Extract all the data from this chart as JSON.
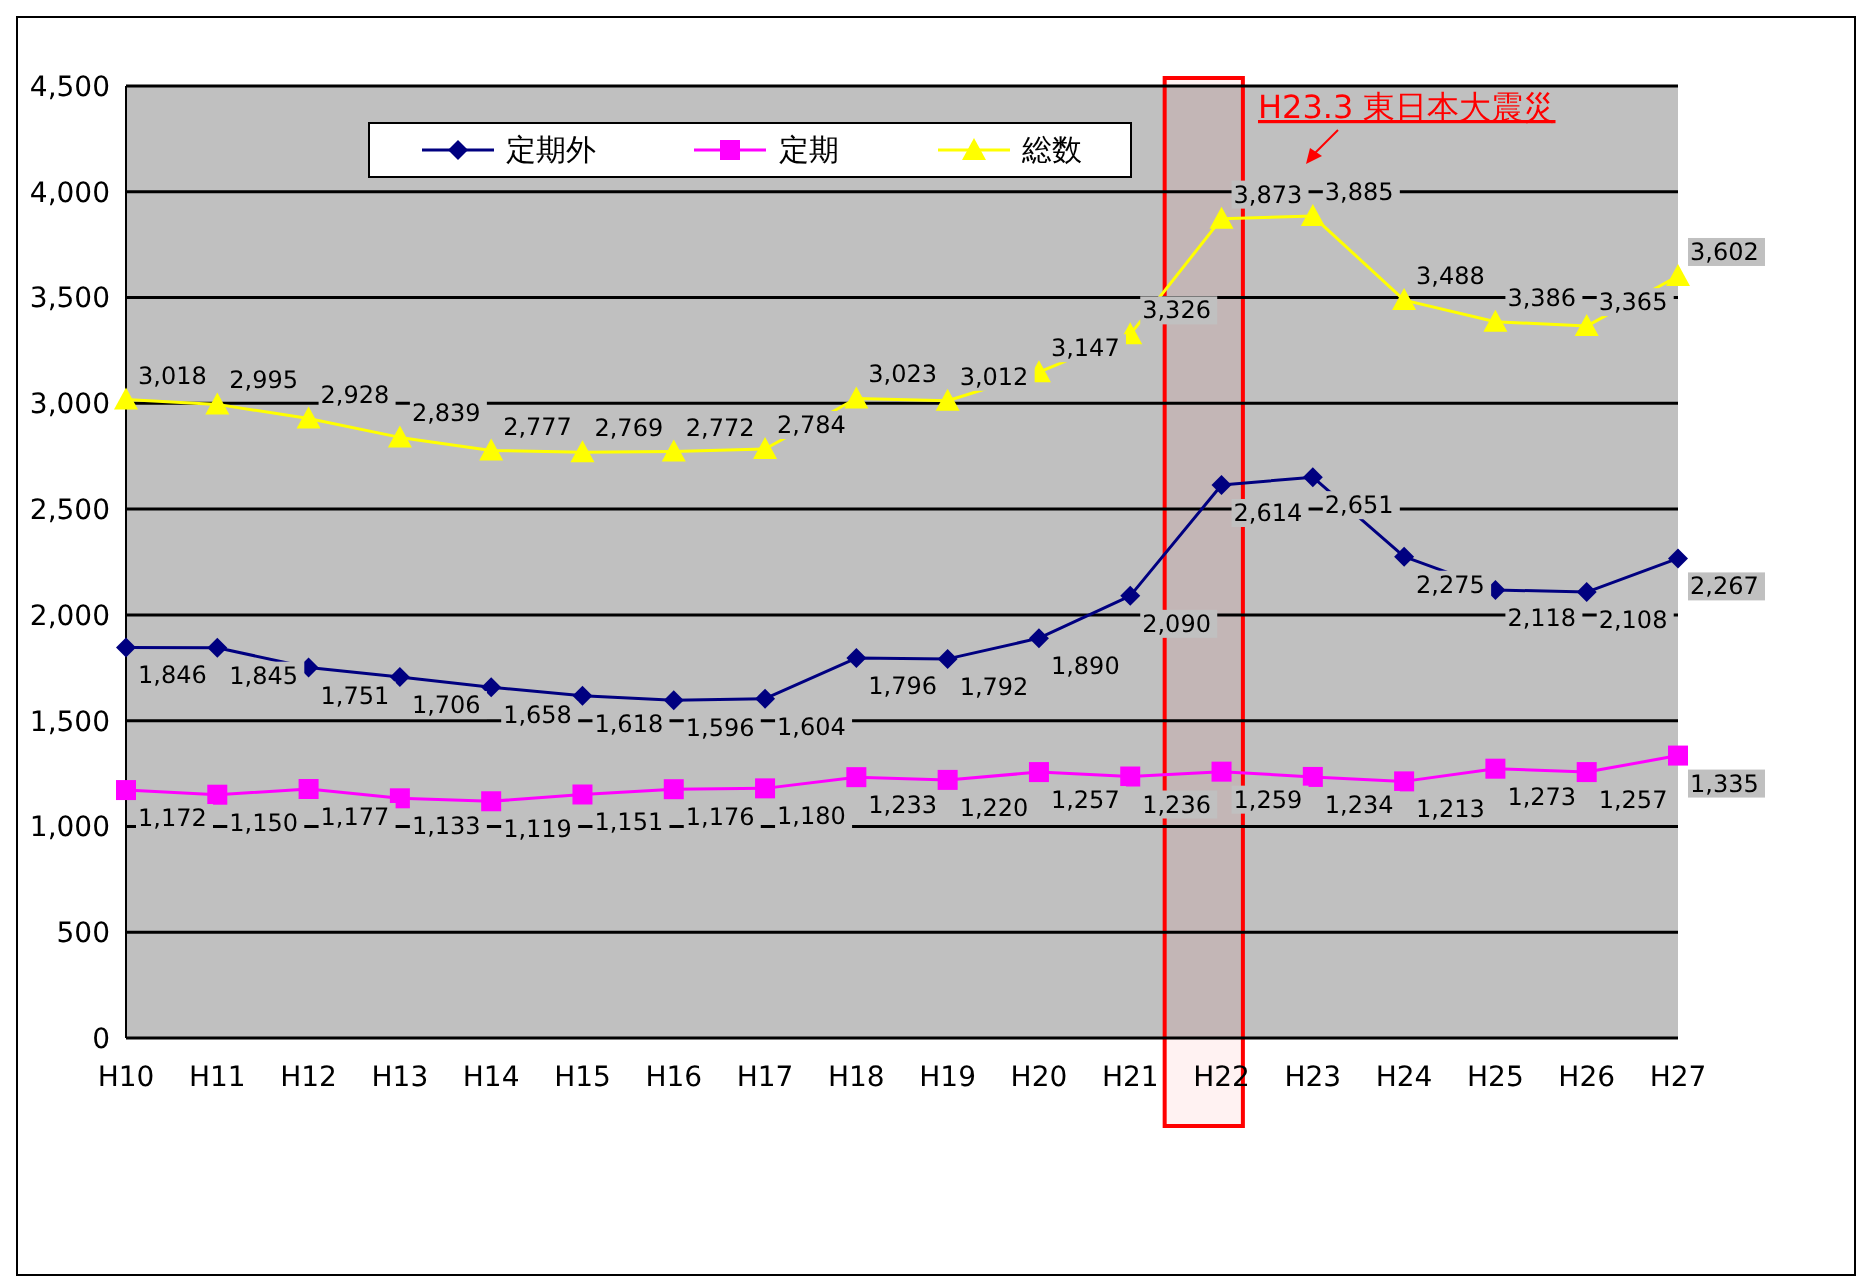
{
  "chart_data": {
    "type": "line",
    "categories": [
      "H10",
      "H11",
      "H12",
      "H13",
      "H14",
      "H15",
      "H16",
      "H17",
      "H18",
      "H19",
      "H20",
      "H21",
      "H22",
      "H23",
      "H24",
      "H25",
      "H26",
      "H27"
    ],
    "series": [
      {
        "name": "定期外",
        "color": "#000080",
        "marker": "diamond",
        "values": [
          1846,
          1845,
          1751,
          1706,
          1658,
          1618,
          1596,
          1604,
          1796,
          1792,
          1890,
          2090,
          2614,
          2651,
          2275,
          2118,
          2108,
          2267
        ],
        "value_labels": [
          "1,846",
          "1,845",
          "1,751",
          "1,706",
          "1,658",
          "1,618",
          "1,596",
          "1,604",
          "1,796",
          "1,792",
          "1,890",
          "2,090",
          "2,614",
          "2,651",
          "2,275",
          "2,118",
          "2,108",
          "2,267"
        ]
      },
      {
        "name": "定期",
        "color": "#ff00ff",
        "marker": "square",
        "values": [
          1172,
          1150,
          1177,
          1133,
          1119,
          1151,
          1176,
          1180,
          1233,
          1220,
          1257,
          1236,
          1259,
          1234,
          1213,
          1273,
          1257,
          1335
        ],
        "value_labels": [
          "1,172",
          "1,150",
          "1,177",
          "1,133",
          "1,119",
          "1,151",
          "1,176",
          "1,180",
          "1,233",
          "1,220",
          "1,257",
          "1,236",
          "1,259",
          "1,234",
          "1,213",
          "1,273",
          "1,257",
          "1,335"
        ]
      },
      {
        "name": "総数",
        "color": "#ffff00",
        "marker": "triangle",
        "values": [
          3018,
          2995,
          2928,
          2839,
          2777,
          2769,
          2772,
          2784,
          3023,
          3012,
          3147,
          3326,
          3873,
          3885,
          3488,
          3386,
          3365,
          3602
        ],
        "value_labels": [
          "3,018",
          "2,995",
          "2,928",
          "2,839",
          "2,777",
          "2,769",
          "2,772",
          "2,784",
          "3,023",
          "3,012",
          "3,147",
          "3,326",
          "3,873",
          "3,885",
          "3,488",
          "3,386",
          "3,365",
          "3,602"
        ]
      }
    ],
    "ylim": [
      0,
      4500
    ],
    "yticks": [
      0,
      500,
      {
        "value": 1000,
        "label": "1,000"
      },
      {
        "value": 1500,
        "label": "1,500"
      },
      {
        "value": 2000,
        "label": "2,000"
      },
      {
        "value": 2500,
        "label": "2,500"
      },
      {
        "value": 3000,
        "label": "3,000"
      },
      {
        "value": 3500,
        "label": "3,500"
      },
      {
        "value": 4000,
        "label": "4,000"
      },
      {
        "value": 4500,
        "label": "4,500"
      }
    ],
    "grid": "y",
    "legend": "top",
    "bands": [
      {
        "axis": "x",
        "from": "H22",
        "to": "H22",
        "color": "#ff0000"
      }
    ],
    "annotations": [
      "H23.3 東日本大震災"
    ]
  }
}
